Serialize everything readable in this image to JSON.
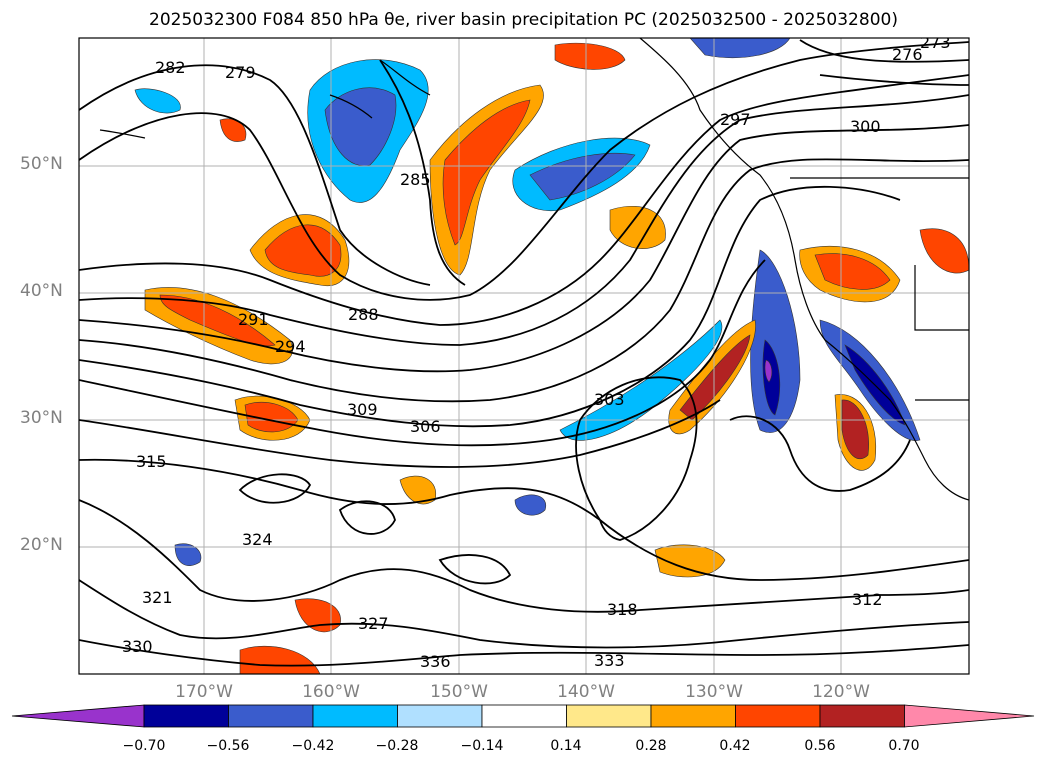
{
  "title": "2025032300 F084 850 hPa θe, river basin precipitation PC (2025032500 - 2025032800)",
  "latitude_labels": [
    "50°N",
    "40°N",
    "30°N",
    "20°N"
  ],
  "longitude_labels": [
    "170°W",
    "160°W",
    "150°W",
    "140°W",
    "130°W",
    "120°W"
  ],
  "colorbar": {
    "tick_labels": [
      "−0.70",
      "−0.56",
      "−0.42",
      "−0.28",
      "−0.14",
      "0.14",
      "0.28",
      "0.42",
      "0.56",
      "0.70"
    ],
    "colors": [
      "#9933cc",
      "#000099",
      "#3a5ccc",
      "#00bbff",
      "#b0e0ff",
      "#ffffff",
      "#ffe88a",
      "#ffa500",
      "#ff4500",
      "#b22222",
      "#ff88aa"
    ]
  },
  "contour_labels": [
    "282",
    "279",
    "285",
    "288",
    "291",
    "294",
    "297",
    "300",
    "303",
    "306",
    "309",
    "312",
    "315",
    "318",
    "321",
    "324",
    "327",
    "330",
    "333",
    "336",
    "276",
    "273"
  ],
  "colors": {
    "coast": "#000000",
    "grid": "#b0b0b0",
    "contour": "#000000"
  }
}
